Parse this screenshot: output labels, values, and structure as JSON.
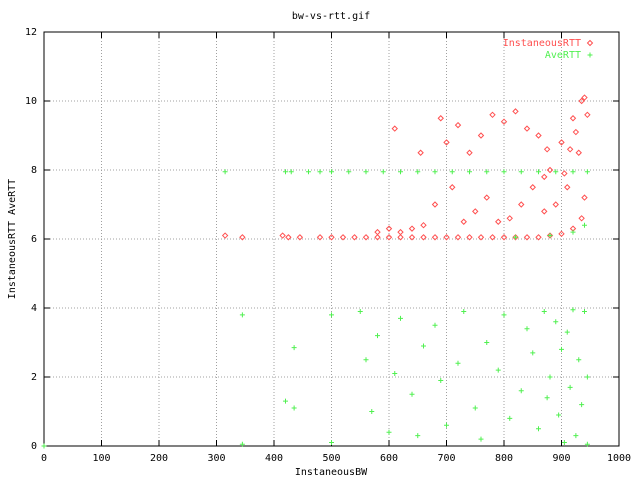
{
  "chart_data": {
    "type": "scatter",
    "title": "bw-vs-rtt.gif",
    "x_label": "InstaneousBW",
    "y_label": "InstaneousRTT AveRTT",
    "xlim": [
      0,
      1000
    ],
    "ylim": [
      0,
      12
    ],
    "xticks": [
      0,
      100,
      200,
      300,
      400,
      500,
      600,
      700,
      800,
      900,
      1000
    ],
    "yticks": [
      0,
      2,
      4,
      6,
      8,
      10,
      12
    ],
    "grid": true,
    "legend": "top-right",
    "series": [
      {
        "name": "InstaneousRTT",
        "color": "#ff5050",
        "marker": "diamond",
        "x": [
          315,
          345,
          415,
          425,
          445,
          480,
          500,
          520,
          540,
          560,
          580,
          600,
          620,
          640,
          660,
          680,
          700,
          720,
          740,
          760,
          780,
          800,
          820,
          840,
          860,
          880,
          900,
          920,
          935,
          940,
          610,
          655,
          690,
          700,
          720,
          740,
          760,
          780,
          800,
          820,
          840,
          860,
          880,
          900,
          920,
          935,
          940,
          945,
          930,
          910,
          890,
          870,
          850,
          830,
          810,
          790,
          770,
          750,
          730,
          710,
          680,
          660,
          640,
          620,
          600,
          580,
          905,
          915,
          925,
          870,
          875
        ],
        "y": [
          6.1,
          6.05,
          6.1,
          6.05,
          6.05,
          6.05,
          6.05,
          6.05,
          6.05,
          6.05,
          6.05,
          6.05,
          6.05,
          6.05,
          6.05,
          6.05,
          6.05,
          6.05,
          6.05,
          6.05,
          6.05,
          6.05,
          6.05,
          6.05,
          6.05,
          6.1,
          6.15,
          6.3,
          6.6,
          7.2,
          9.2,
          8.5,
          9.5,
          8.8,
          9.3,
          8.5,
          9.0,
          9.6,
          9.4,
          9.7,
          9.2,
          9.0,
          8.0,
          8.8,
          9.5,
          10.0,
          10.1,
          9.6,
          8.5,
          7.5,
          7.0,
          6.8,
          7.5,
          7.0,
          6.6,
          6.5,
          7.2,
          6.8,
          6.5,
          7.5,
          7.0,
          6.4,
          6.3,
          6.2,
          6.3,
          6.2,
          7.9,
          8.6,
          9.1,
          7.8,
          8.6
        ]
      },
      {
        "name": "AveRTT",
        "color": "#50f050",
        "marker": "plus",
        "x": [
          0,
          315,
          420,
          430,
          460,
          480,
          500,
          530,
          560,
          590,
          620,
          650,
          680,
          710,
          740,
          770,
          800,
          830,
          860,
          890,
          920,
          945,
          345,
          435,
          420,
          435,
          345,
          500,
          500,
          550,
          560,
          570,
          580,
          600,
          610,
          620,
          640,
          650,
          660,
          680,
          690,
          700,
          720,
          730,
          750,
          760,
          770,
          790,
          800,
          810,
          830,
          840,
          850,
          860,
          870,
          875,
          880,
          890,
          895,
          900,
          905,
          910,
          915,
          920,
          925,
          930,
          935,
          940,
          945,
          945,
          880,
          920,
          940,
          820
        ],
        "y": [
          0,
          7.95,
          7.95,
          7.95,
          7.95,
          7.95,
          7.95,
          7.95,
          7.95,
          7.95,
          7.95,
          7.95,
          7.95,
          7.95,
          7.95,
          7.95,
          7.95,
          7.95,
          7.95,
          7.95,
          7.95,
          7.95,
          3.8,
          2.85,
          1.3,
          1.1,
          0.05,
          0.1,
          3.8,
          3.9,
          2.5,
          1.0,
          3.2,
          0.4,
          2.1,
          3.7,
          1.5,
          0.3,
          2.9,
          3.5,
          1.9,
          0.6,
          2.4,
          3.9,
          1.1,
          0.2,
          3.0,
          2.2,
          3.8,
          0.8,
          1.6,
          3.4,
          2.7,
          0.5,
          3.9,
          1.4,
          2.0,
          3.6,
          0.9,
          2.8,
          0.1,
          3.3,
          1.7,
          3.95,
          0.3,
          2.5,
          1.2,
          3.9,
          0.05,
          2.0,
          6.1,
          6.2,
          6.4,
          6.05
        ]
      }
    ]
  }
}
